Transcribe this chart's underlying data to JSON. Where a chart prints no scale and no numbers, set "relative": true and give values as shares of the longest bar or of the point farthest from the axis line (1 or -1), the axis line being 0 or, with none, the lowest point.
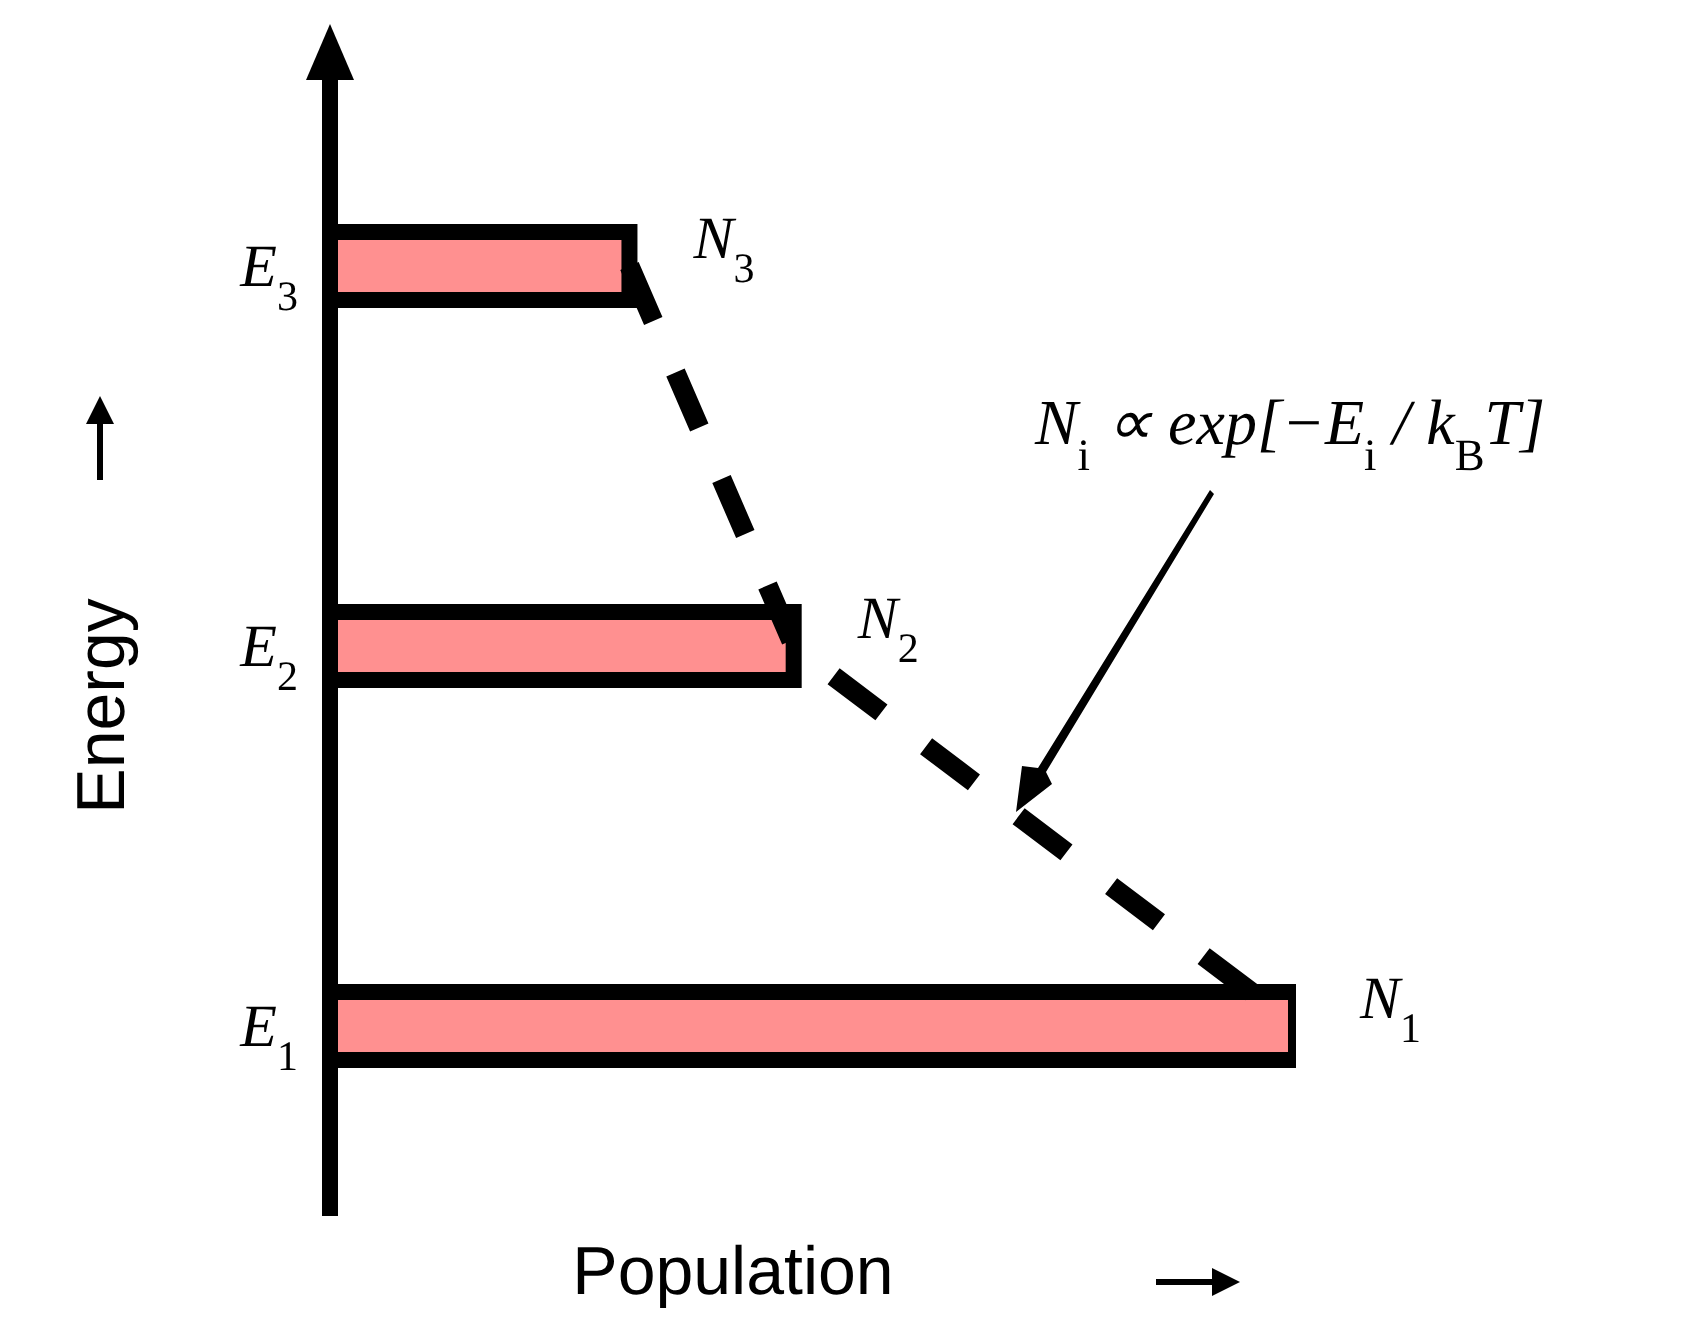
{
  "chart_data": {
    "type": "bar",
    "orientation": "horizontal",
    "relative": true,
    "xlabel": "Population",
    "ylabel": "Energy",
    "categories": [
      "E$_{3}$",
      "E$_{2}$",
      "E$_{1}$"
    ],
    "annotations": [
      "N$_{i}$ ∝ exp[−E$_{i}$ / k$_{B}$T]",
      {
        "text": "N$_{3}$",
        "x": 0.31,
        "y": "E$_{3}$"
      },
      {
        "text": "N$_{2}$",
        "x": 0.48,
        "y": "E$_{2}$"
      },
      {
        "text": "N$_{1}$",
        "x": 1,
        "y": "E$_{1}$"
      }
    ],
    "series": [
      {
        "color": "#ff9090",
        "values": [
          0.31,
          0.48,
          1
        ]
      },
      {
        "type": "line",
        "color": "#000000",
        "values": [
          0.31,
          0.48,
          1
        ],
        "line_style": "dashed",
        "marker": "none"
      }
    ]
  }
}
